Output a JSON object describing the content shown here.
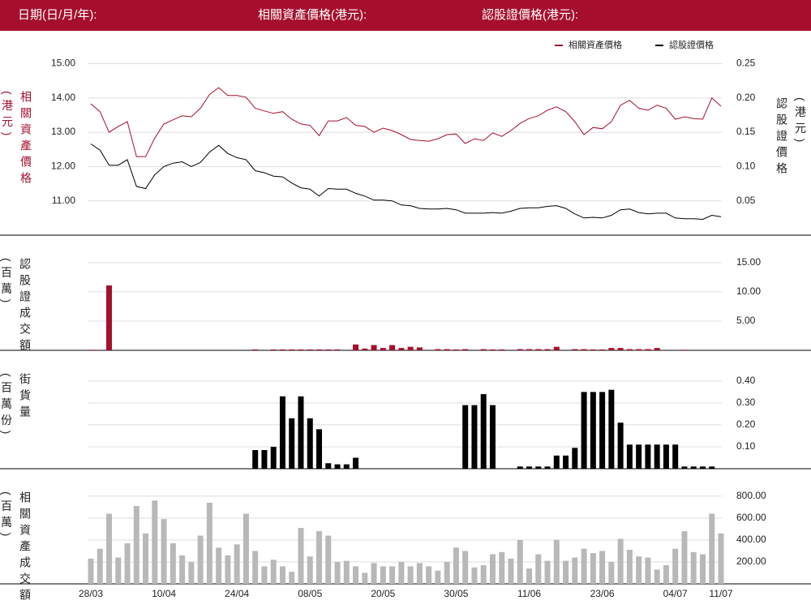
{
  "header": [
    "日期(日/月/年):",
    "相關資產價格(港元):",
    "認股證價格(港元):"
  ],
  "chart_data": [
    {
      "type": "line",
      "y_label": [
        "相關資產價格",
        "(港元)"
      ],
      "y2_label": [
        "認股證價格",
        "(港元)"
      ],
      "legend": "top-right",
      "ylim": [
        10,
        15.2
      ],
      "yticks": [
        {
          "value": 11,
          "label": "11.00"
        },
        {
          "value": 12,
          "label": "12.00"
        },
        {
          "value": 13,
          "label": "13.00"
        },
        {
          "value": 14,
          "label": "14.00"
        },
        {
          "value": 15,
          "label": "15.00"
        }
      ],
      "y2lim": [
        0,
        0.26
      ],
      "y2ticks": [
        {
          "value": 0.05,
          "label": "0.05"
        },
        {
          "value": 0.1,
          "label": "0.10"
        },
        {
          "value": 0.15,
          "label": "0.15"
        },
        {
          "value": 0.2,
          "label": "0.20"
        },
        {
          "value": 0.25,
          "label": "0.25"
        }
      ],
      "grid": true,
      "series": [
        {
          "name": "相關資產價格",
          "color": "#a50f2d",
          "axis": "y",
          "values": [
            13.83,
            13.6,
            13.0,
            13.17,
            13.31,
            12.29,
            12.29,
            12.83,
            13.24,
            13.36,
            13.48,
            13.45,
            13.7,
            14.1,
            14.3,
            14.07,
            14.07,
            14.02,
            13.7,
            13.62,
            13.55,
            13.6,
            13.38,
            13.24,
            13.2,
            12.9,
            13.33,
            13.33,
            13.43,
            13.2,
            13.17,
            13.0,
            13.12,
            13.05,
            12.93,
            12.79,
            12.76,
            12.74,
            12.81,
            12.93,
            12.95,
            12.67,
            12.81,
            12.76,
            12.98,
            12.88,
            13.05,
            13.26,
            13.4,
            13.48,
            13.64,
            13.74,
            13.6,
            13.31,
            12.93,
            13.14,
            13.1,
            13.31,
            13.79,
            13.93,
            13.7,
            13.64,
            13.79,
            13.7,
            13.38,
            13.45,
            13.4,
            13.38,
            14.0,
            13.76
          ]
        },
        {
          "name": "認股證價格",
          "color": "#000000",
          "axis": "y2",
          "values": [
            0.133,
            0.124,
            0.102,
            0.102,
            0.11,
            0.071,
            0.068,
            0.088,
            0.1,
            0.105,
            0.107,
            0.1,
            0.106,
            0.121,
            0.131,
            0.119,
            0.113,
            0.11,
            0.094,
            0.091,
            0.086,
            0.085,
            0.076,
            0.069,
            0.067,
            0.057,
            0.068,
            0.067,
            0.067,
            0.061,
            0.057,
            0.051,
            0.051,
            0.05,
            0.044,
            0.043,
            0.039,
            0.038,
            0.038,
            0.039,
            0.037,
            0.032,
            0.032,
            0.032,
            0.033,
            0.032,
            0.035,
            0.039,
            0.04,
            0.04,
            0.042,
            0.043,
            0.039,
            0.031,
            0.025,
            0.026,
            0.025,
            0.029,
            0.037,
            0.038,
            0.033,
            0.031,
            0.032,
            0.032,
            0.025,
            0.024,
            0.024,
            0.023,
            0.029,
            0.027
          ]
        }
      ]
    },
    {
      "type": "bar",
      "y_label": [
        "認股證成交額",
        "(百萬)"
      ],
      "color": "#a50f2d",
      "grid": true,
      "ylim": [
        0,
        19.7
      ],
      "yticks": [
        {
          "value": 5,
          "label": "5.00"
        },
        {
          "value": 10,
          "label": "10.00"
        },
        {
          "value": 15,
          "label": "15.00"
        }
      ],
      "values": [
        0.1,
        0,
        11.1,
        0,
        0,
        0,
        0,
        0,
        0,
        0,
        0,
        0,
        0,
        0,
        0,
        0,
        0,
        0,
        0.15,
        0,
        0.15,
        0.15,
        0.15,
        0.15,
        0.15,
        0.15,
        0.15,
        0.15,
        0,
        1.0,
        0.3,
        0.9,
        0.4,
        0.9,
        0.4,
        0.6,
        0.5,
        0,
        0.2,
        0.2,
        0.15,
        0.2,
        0,
        0.2,
        0.15,
        0.15,
        0,
        0.2,
        0.2,
        0.2,
        0.2,
        0.6,
        0,
        0.2,
        0.2,
        0.15,
        0.15,
        0.4,
        0.4,
        0.2,
        0.2,
        0.2,
        0.4,
        0,
        0,
        0.1,
        0,
        0,
        0,
        0
      ]
    },
    {
      "type": "bar",
      "y_label": [
        "街貨量",
        "(百萬份)"
      ],
      "color": "#000000",
      "grid": true,
      "ylim": [
        0,
        0.54
      ],
      "yticks": [
        {
          "value": 0.1,
          "label": "0.10"
        },
        {
          "value": 0.2,
          "label": "0.20"
        },
        {
          "value": 0.3,
          "label": "0.30"
        },
        {
          "value": 0.4,
          "label": "0.40"
        }
      ],
      "values": [
        0,
        0,
        0,
        0,
        0,
        0,
        0,
        0,
        0,
        0,
        0,
        0,
        0,
        0,
        0,
        0,
        0,
        0,
        0.085,
        0.085,
        0.1,
        0.33,
        0.23,
        0.33,
        0.23,
        0.18,
        0.025,
        0.02,
        0.02,
        0.05,
        0,
        0,
        0,
        0,
        0,
        0,
        0,
        0,
        0,
        0,
        0,
        0.29,
        0.29,
        0.34,
        0.29,
        0,
        0,
        0.01,
        0.01,
        0.01,
        0.01,
        0.06,
        0.06,
        0.095,
        0.35,
        0.35,
        0.35,
        0.36,
        0.21,
        0.11,
        0.11,
        0.11,
        0.11,
        0.11,
        0.11,
        0.01,
        0.01,
        0.01,
        0.01,
        0
      ]
    },
    {
      "type": "bar",
      "y_label": [
        "相關資產成交額",
        "(百萬)"
      ],
      "color": "#b8b8b8",
      "grid": true,
      "ylim": [
        0,
        1050
      ],
      "yticks": [
        {
          "value": 200,
          "label": "200.00"
        },
        {
          "value": 400,
          "label": "400.00"
        },
        {
          "value": 600,
          "label": "600.00"
        },
        {
          "value": 800,
          "label": "800.00"
        }
      ],
      "categories": [
        "28/03",
        null,
        null,
        null,
        null,
        null,
        null,
        null,
        "10/04",
        null,
        null,
        null,
        null,
        null,
        null,
        null,
        "24/04",
        null,
        null,
        null,
        null,
        null,
        null,
        null,
        "08/05",
        null,
        null,
        null,
        null,
        null,
        null,
        null,
        "20/05",
        null,
        null,
        null,
        null,
        null,
        null,
        null,
        "30/05",
        null,
        null,
        null,
        null,
        null,
        null,
        null,
        "11/06",
        null,
        null,
        null,
        null,
        null,
        null,
        null,
        "23/06",
        null,
        null,
        null,
        null,
        null,
        null,
        null,
        "04/07",
        null,
        null,
        null,
        null,
        "11/07"
      ],
      "values": [
        230,
        320,
        640,
        240,
        370,
        710,
        460,
        760,
        590,
        370,
        260,
        200,
        440,
        740,
        330,
        260,
        360,
        640,
        300,
        160,
        220,
        160,
        110,
        510,
        250,
        480,
        440,
        200,
        210,
        160,
        100,
        190,
        160,
        160,
        200,
        160,
        190,
        160,
        120,
        200,
        330,
        300,
        150,
        170,
        270,
        290,
        230,
        400,
        140,
        270,
        210,
        400,
        210,
        240,
        320,
        280,
        300,
        200,
        410,
        310,
        250,
        240,
        130,
        170,
        320,
        480,
        290,
        270,
        640,
        460
      ]
    }
  ]
}
